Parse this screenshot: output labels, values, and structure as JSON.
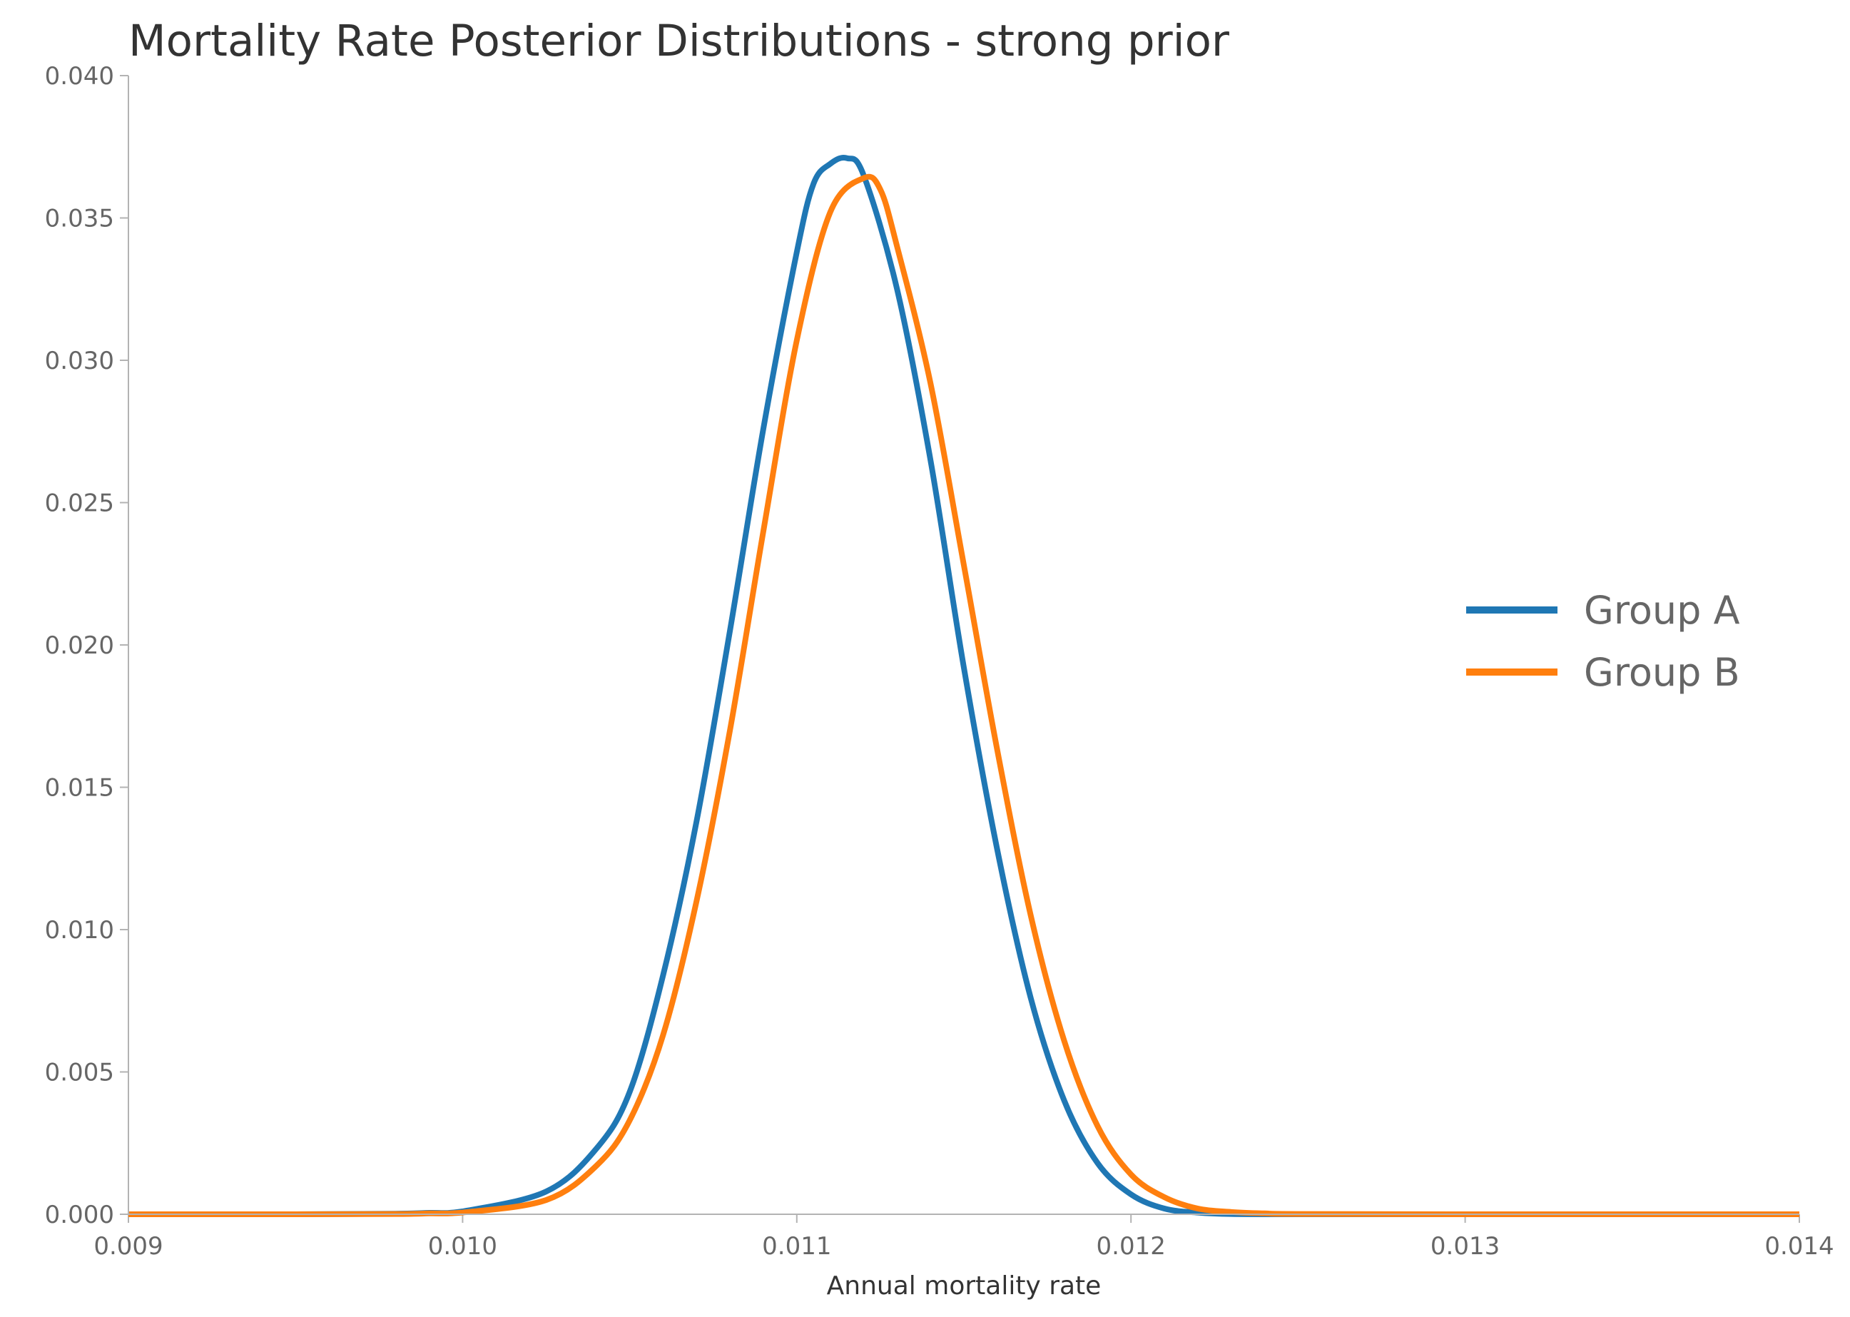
{
  "chart_data": {
    "type": "line",
    "title": "Mortality Rate Posterior Distributions - strong prior",
    "xlabel": "Annual mortality rate",
    "ylabel": "",
    "xlim": [
      0.009,
      0.014
    ],
    "ylim": [
      0.0,
      0.04
    ],
    "xticks": [
      "0.009",
      "0.010",
      "0.011",
      "0.012",
      "0.013",
      "0.014"
    ],
    "yticks": [
      "0.000",
      "0.005",
      "0.010",
      "0.015",
      "0.020",
      "0.025",
      "0.030",
      "0.035",
      "0.040"
    ],
    "grid": false,
    "legend_position": "center-right",
    "series": [
      {
        "name": "Group A",
        "color": "#1f77b4",
        "x": [
          0.009,
          0.0095,
          0.0098,
          0.0099,
          0.01,
          0.01025,
          0.0104,
          0.0105,
          0.0106,
          0.0107,
          0.0108,
          0.0109,
          0.011,
          0.01105,
          0.0111,
          0.01115,
          0.0112,
          0.0113,
          0.0114,
          0.0115,
          0.0116,
          0.0117,
          0.0118,
          0.0119,
          0.012,
          0.0121,
          0.0122,
          0.0123,
          0.0125,
          0.013,
          0.014
        ],
        "y": [
          0.0,
          0.0,
          2e-05,
          5e-05,
          0.0001,
          0.0008,
          0.0023,
          0.0043,
          0.0084,
          0.0138,
          0.0205,
          0.0276,
          0.0338,
          0.0362,
          0.0369,
          0.0371,
          0.0365,
          0.0325,
          0.0265,
          0.0192,
          0.0128,
          0.0076,
          0.004,
          0.0018,
          0.0007,
          0.0002,
          6e-05,
          1e-05,
          0.0,
          0.0,
          0.0
        ]
      },
      {
        "name": "Group B",
        "color": "#ff7f0e",
        "x": [
          0.009,
          0.0095,
          0.0098,
          0.0099,
          0.01,
          0.01025,
          0.0104,
          0.0105,
          0.0106,
          0.0107,
          0.0108,
          0.0109,
          0.011,
          0.0111,
          0.0112,
          0.01125,
          0.0113,
          0.0114,
          0.0115,
          0.0116,
          0.0117,
          0.0118,
          0.0119,
          0.012,
          0.0121,
          0.0122,
          0.0123,
          0.0124,
          0.0125,
          0.013,
          0.014
        ],
        "y": [
          0.0,
          0.0,
          1e-05,
          3e-05,
          6e-05,
          0.0005,
          0.0017,
          0.0033,
          0.0063,
          0.011,
          0.017,
          0.024,
          0.0307,
          0.0352,
          0.0364,
          0.036,
          0.034,
          0.0292,
          0.0228,
          0.0163,
          0.0105,
          0.0061,
          0.0031,
          0.0014,
          0.0006,
          0.0002,
          8e-05,
          3e-05,
          1e-05,
          0.0,
          0.0
        ]
      }
    ]
  }
}
